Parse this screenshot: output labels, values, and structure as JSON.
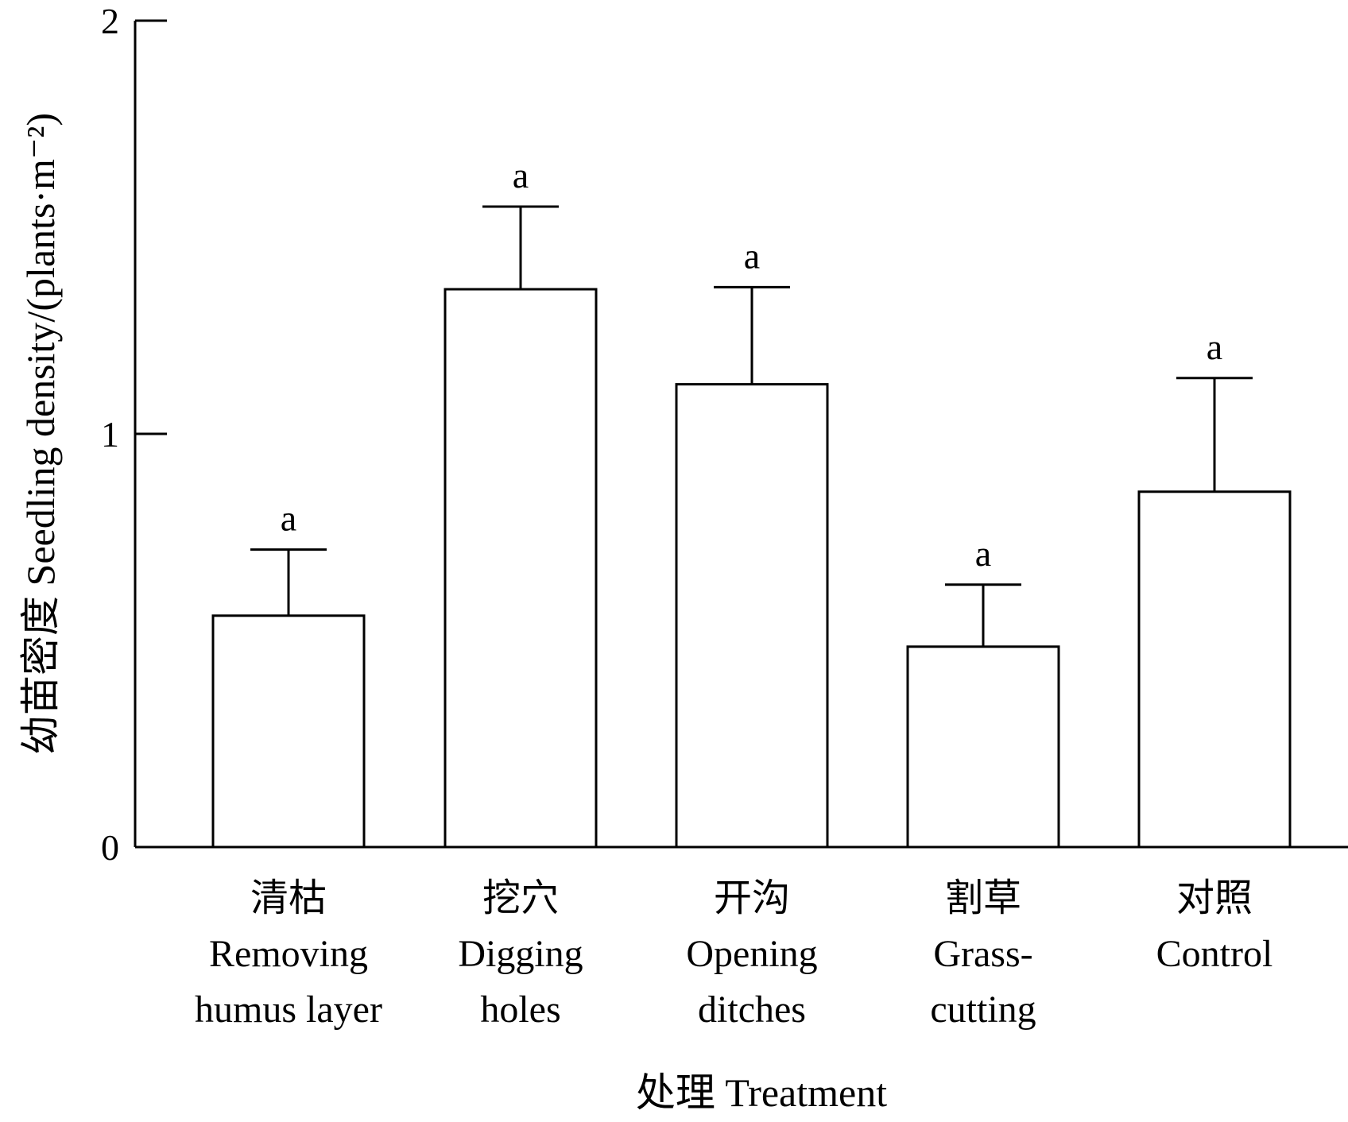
{
  "chart_data": {
    "type": "bar",
    "ylim": [
      0,
      2
    ],
    "yticks": [
      "0",
      "1",
      "2"
    ],
    "ylabel": "幼苗密度  Seedling density/(plants·m⁻²)",
    "xlabel": "处理  Treatment",
    "categories": [
      {
        "zh": "清枯",
        "en_lines": [
          "Removing",
          "humus layer"
        ]
      },
      {
        "zh": "挖穴",
        "en_lines": [
          "Digging",
          "holes"
        ]
      },
      {
        "zh": "开沟",
        "en_lines": [
          "Opening",
          "ditches"
        ]
      },
      {
        "zh": "割草",
        "en_lines": [
          "Grass-",
          "cutting"
        ]
      },
      {
        "zh": "对照",
        "en_lines": [
          "Control"
        ]
      }
    ],
    "values": [
      0.56,
      1.35,
      1.12,
      0.485,
      0.86
    ],
    "errors": [
      0.16,
      0.2,
      0.235,
      0.15,
      0.275
    ],
    "significance": [
      "a",
      "a",
      "a",
      "a",
      "a"
    ],
    "grid": false,
    "legend": "none"
  }
}
